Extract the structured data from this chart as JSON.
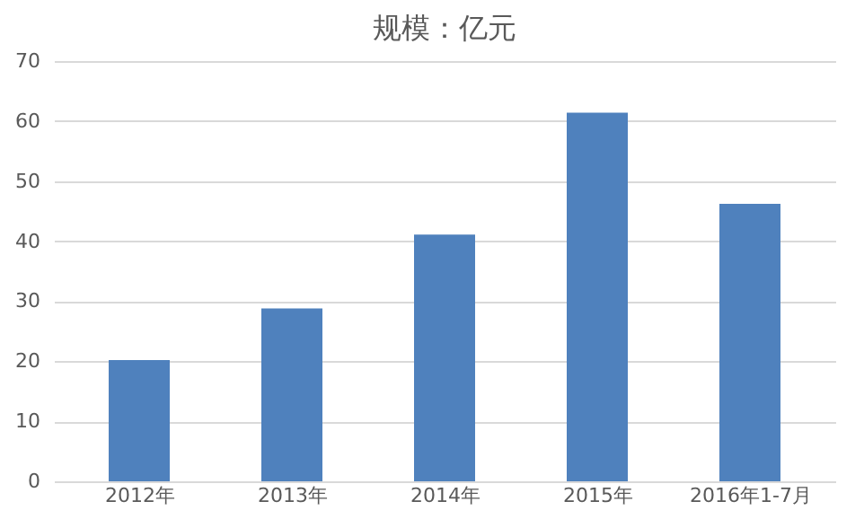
{
  "chart_data": {
    "type": "bar",
    "title": "规模：亿元",
    "categories": [
      "2012年",
      "2013年",
      "2014年",
      "2015年",
      "2016年1-7月"
    ],
    "values": [
      20.2,
      28.8,
      41.1,
      61.4,
      46.2
    ],
    "color": "#4f81bd",
    "ylim": [
      0,
      70
    ],
    "yticks": [
      0,
      10,
      20,
      30,
      40,
      50,
      60,
      70
    ],
    "grid": "y"
  }
}
